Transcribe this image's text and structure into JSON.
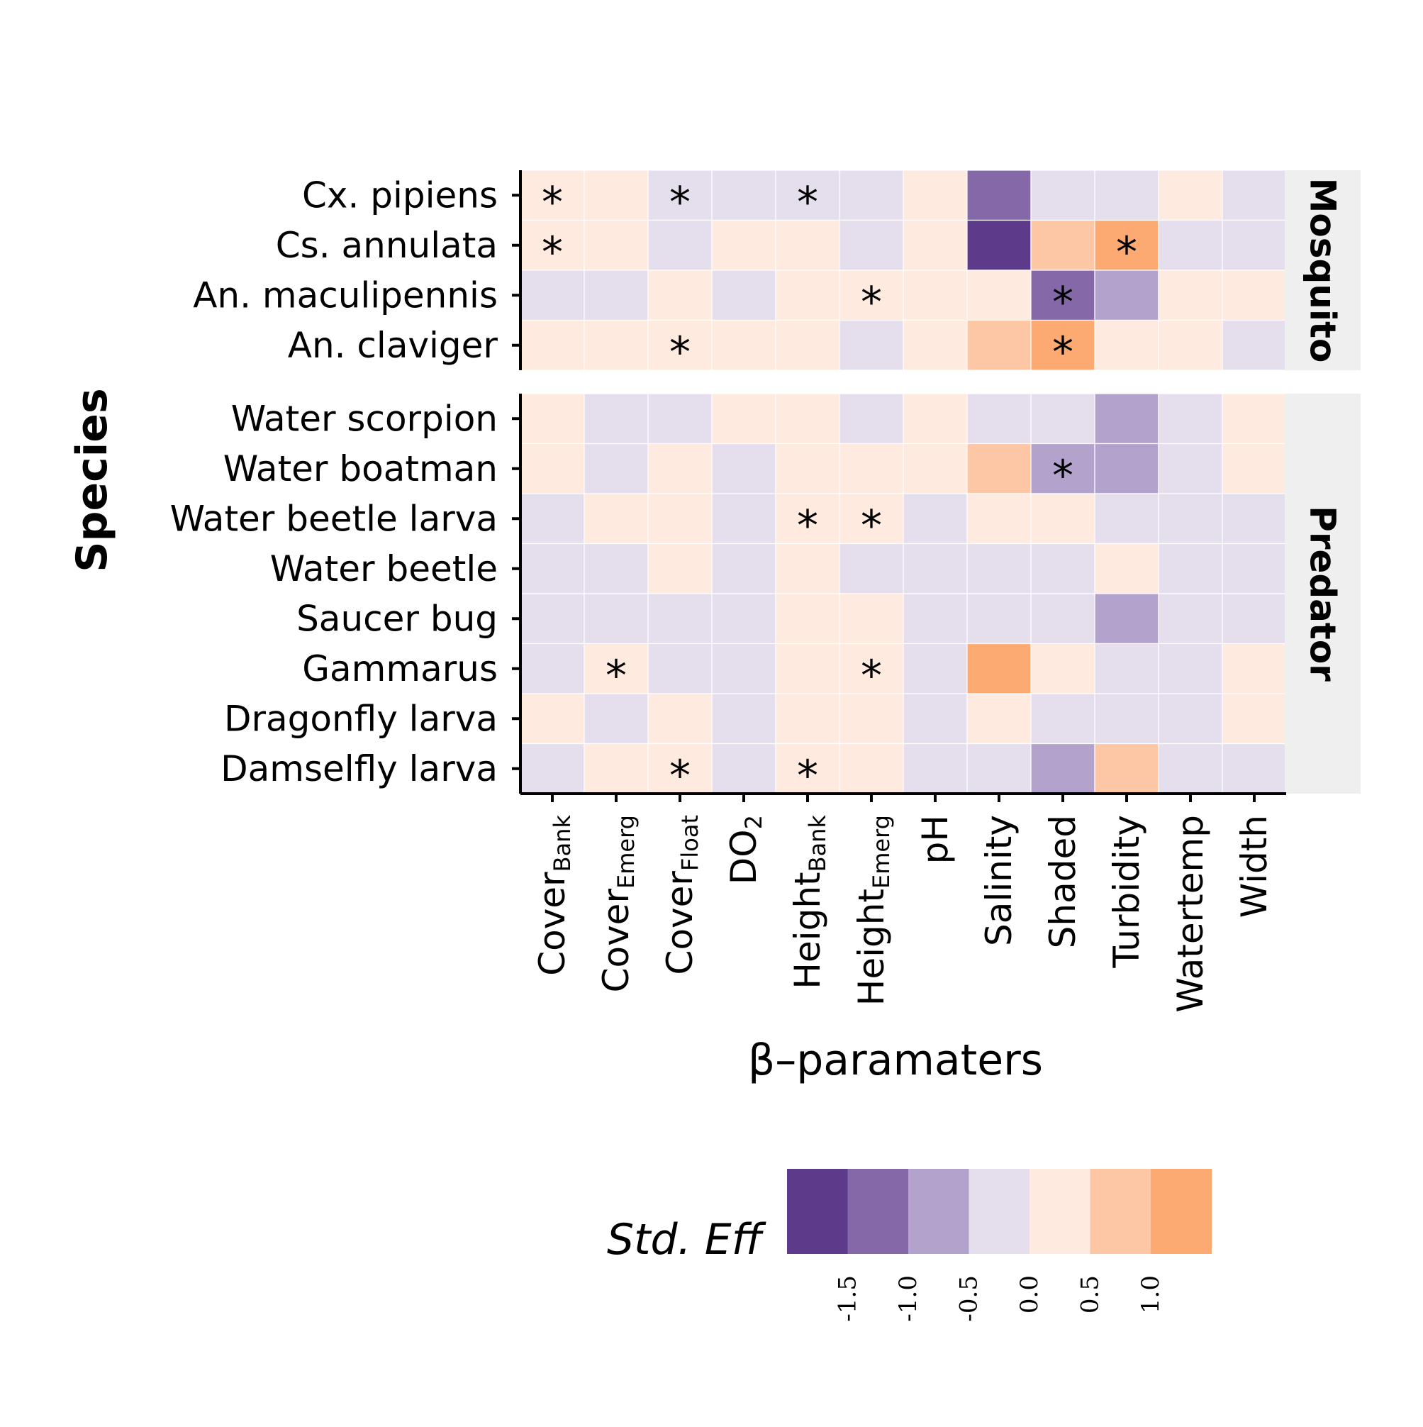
{
  "chart_data": {
    "type": "heatmap",
    "xlabel": "β–paramaters",
    "ylabel": "Species",
    "columns": [
      {
        "base": "Cover",
        "sub": "Bank"
      },
      {
        "base": "Cover",
        "sub": "Emerg"
      },
      {
        "base": "Cover",
        "sub": "Float"
      },
      {
        "base": "DO",
        "sub": "2"
      },
      {
        "base": "Height",
        "sub": "Bank"
      },
      {
        "base": "Height",
        "sub": "Emerg"
      },
      {
        "base": "pH",
        "sub": ""
      },
      {
        "base": "Salinity",
        "sub": ""
      },
      {
        "base": "Shaded",
        "sub": ""
      },
      {
        "base": "Turbidity",
        "sub": ""
      },
      {
        "base": "Watertemp",
        "sub": ""
      },
      {
        "base": "Width",
        "sub": ""
      }
    ],
    "facets": [
      {
        "label": "Mosquito",
        "rows": [
          "Cx. pipiens",
          "Cs. annulata",
          "An. maculipennis",
          "An. claviger"
        ],
        "values": [
          [
            0.25,
            0.25,
            -0.25,
            -0.25,
            -0.25,
            -0.25,
            0.25,
            -1.25,
            -0.25,
            -0.25,
            0.25,
            -0.25
          ],
          [
            0.25,
            0.25,
            -0.25,
            0.25,
            0.25,
            -0.25,
            0.25,
            -1.75,
            0.75,
            1.25,
            -0.25,
            -0.25
          ],
          [
            -0.25,
            -0.25,
            0.25,
            -0.25,
            0.25,
            0.25,
            0.25,
            0.25,
            -1.25,
            -0.75,
            0.25,
            0.25
          ],
          [
            0.25,
            0.25,
            0.25,
            0.25,
            0.25,
            -0.25,
            0.25,
            0.75,
            1.25,
            0.25,
            0.25,
            -0.25
          ]
        ],
        "significant": [
          [
            1,
            0,
            1,
            0,
            1,
            0,
            0,
            0,
            0,
            0,
            0,
            0
          ],
          [
            1,
            0,
            0,
            0,
            0,
            0,
            0,
            0,
            0,
            1,
            0,
            0
          ],
          [
            0,
            0,
            0,
            0,
            0,
            1,
            0,
            0,
            1,
            0,
            0,
            0
          ],
          [
            0,
            0,
            1,
            0,
            0,
            0,
            0,
            0,
            1,
            0,
            0,
            0
          ]
        ]
      },
      {
        "label": "Predator",
        "rows": [
          "Water scorpion",
          "Water boatman",
          "Water beetle larva",
          "Water beetle",
          "Saucer bug",
          "Gammarus",
          "Dragonfly larva",
          "Damselfly larva"
        ],
        "values": [
          [
            0.25,
            -0.25,
            -0.25,
            0.25,
            0.25,
            -0.25,
            0.25,
            -0.25,
            -0.25,
            -0.75,
            -0.25,
            0.25
          ],
          [
            0.25,
            -0.25,
            0.25,
            -0.25,
            0.25,
            0.25,
            0.25,
            0.75,
            -0.75,
            -0.75,
            -0.25,
            0.25
          ],
          [
            -0.25,
            0.25,
            0.25,
            -0.25,
            0.25,
            0.25,
            -0.25,
            0.25,
            0.25,
            -0.25,
            -0.25,
            -0.25
          ],
          [
            -0.25,
            -0.25,
            0.25,
            -0.25,
            0.25,
            -0.25,
            -0.25,
            -0.25,
            -0.25,
            0.25,
            -0.25,
            -0.25
          ],
          [
            -0.25,
            -0.25,
            -0.25,
            -0.25,
            0.25,
            0.25,
            -0.25,
            -0.25,
            -0.25,
            -0.75,
            -0.25,
            -0.25
          ],
          [
            -0.25,
            0.25,
            -0.25,
            -0.25,
            0.25,
            0.25,
            -0.25,
            1.25,
            0.25,
            -0.25,
            -0.25,
            0.25
          ],
          [
            0.25,
            -0.25,
            0.25,
            -0.25,
            0.25,
            0.25,
            -0.25,
            0.25,
            -0.25,
            -0.25,
            -0.25,
            0.25
          ],
          [
            -0.25,
            0.25,
            0.25,
            -0.25,
            0.25,
            0.25,
            -0.25,
            -0.25,
            -0.75,
            0.75,
            -0.25,
            -0.25
          ]
        ],
        "significant": [
          [
            0,
            0,
            0,
            0,
            0,
            0,
            0,
            0,
            0,
            0,
            0,
            0
          ],
          [
            0,
            0,
            0,
            0,
            0,
            0,
            0,
            0,
            1,
            0,
            0,
            0
          ],
          [
            0,
            0,
            0,
            0,
            1,
            1,
            0,
            0,
            0,
            0,
            0,
            0
          ],
          [
            0,
            0,
            0,
            0,
            0,
            0,
            0,
            0,
            0,
            0,
            0,
            0
          ],
          [
            0,
            0,
            0,
            0,
            0,
            0,
            0,
            0,
            0,
            0,
            0,
            0
          ],
          [
            0,
            1,
            0,
            0,
            0,
            1,
            0,
            0,
            0,
            0,
            0,
            0
          ],
          [
            0,
            0,
            0,
            0,
            0,
            0,
            0,
            0,
            0,
            0,
            0,
            0
          ],
          [
            0,
            0,
            1,
            0,
            1,
            0,
            0,
            0,
            0,
            0,
            0,
            0
          ]
        ]
      }
    ],
    "significance_marker": "*",
    "legend": {
      "title": "Std. Eff",
      "placement": "bottom",
      "breaks": [
        -2.0,
        -1.5,
        -1.0,
        -0.5,
        0.0,
        0.5,
        1.0,
        1.5
      ],
      "colors": [
        "#5e3a8a",
        "#8468a8",
        "#b3a3cc",
        "#e5dfed",
        "#feeadf",
        "#fdc7a6",
        "#fda972"
      ],
      "tick_labels": [
        "-1.5",
        "-1.0",
        "-0.5",
        "0.0",
        "0.5",
        "1.0"
      ]
    },
    "colors": {
      "strip_background": "#efefef",
      "cell_border": "#ffffff",
      "axis_line": "#000000"
    }
  }
}
